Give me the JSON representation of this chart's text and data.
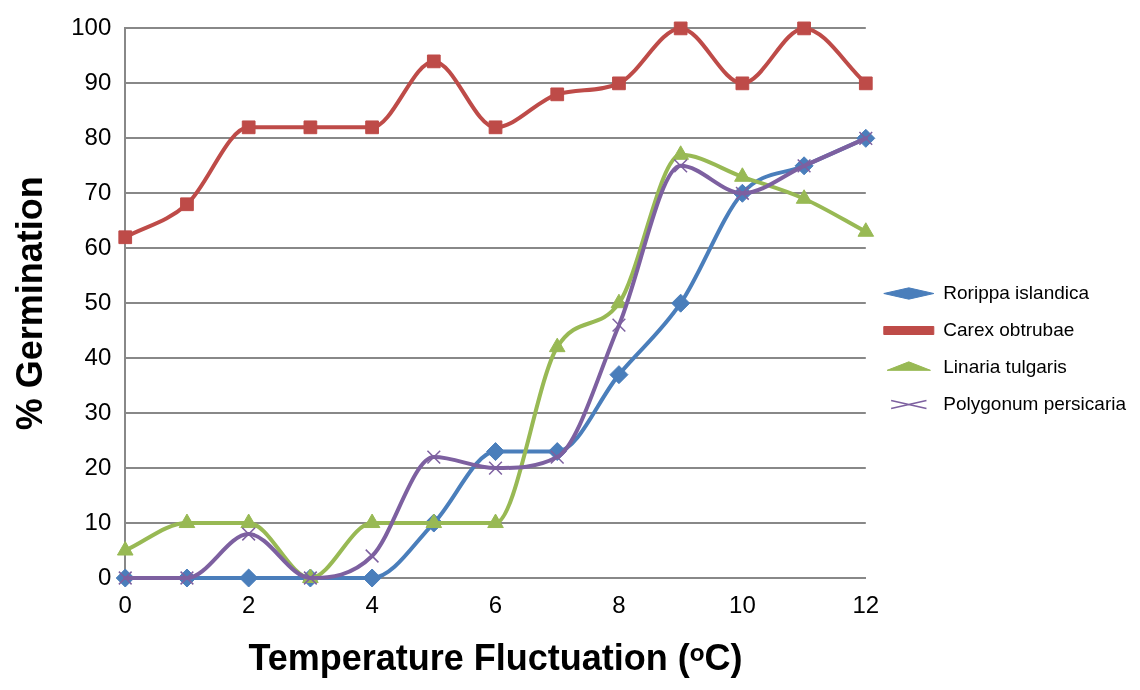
{
  "chart_data": {
    "type": "line",
    "xlabel": "Temperature Fluctuation (ᵒC)",
    "ylabel": "% Germination",
    "x": [
      0,
      1,
      2,
      3,
      4,
      5,
      6,
      7,
      8,
      9,
      10,
      11,
      12
    ],
    "xlim": [
      0,
      12
    ],
    "xticks": [
      0,
      2,
      4,
      6,
      8,
      10,
      12
    ],
    "ylim": [
      0,
      100
    ],
    "yticks": [
      0,
      10,
      20,
      30,
      40,
      50,
      60,
      70,
      80,
      90,
      100
    ],
    "grid": "y",
    "legend": "right",
    "line_style": "solid",
    "series": [
      {
        "name": "Rorippa islandica",
        "color": "#4a7ebb",
        "marker": "diamond",
        "values": [
          0,
          0,
          0,
          0,
          0,
          10,
          23,
          23,
          37,
          50,
          70,
          75,
          80
        ]
      },
      {
        "name": "Carex obtrubae",
        "color": "#be4b48",
        "marker": "square",
        "values": [
          62,
          68,
          82,
          82,
          82,
          94,
          82,
          88,
          90,
          100,
          90,
          100,
          90
        ]
      },
      {
        "name": "Linaria tulgaris",
        "color": "#98b954",
        "marker": "triangle",
        "values": [
          5,
          10,
          10,
          0,
          10,
          10,
          10,
          42,
          50,
          77,
          73,
          69,
          63
        ]
      },
      {
        "name": "Polygonum persicaria",
        "color": "#7d60a0",
        "marker": "cross",
        "values": [
          0,
          0,
          8,
          0,
          4,
          22,
          20,
          22,
          46,
          75,
          70,
          75,
          80
        ]
      }
    ]
  }
}
